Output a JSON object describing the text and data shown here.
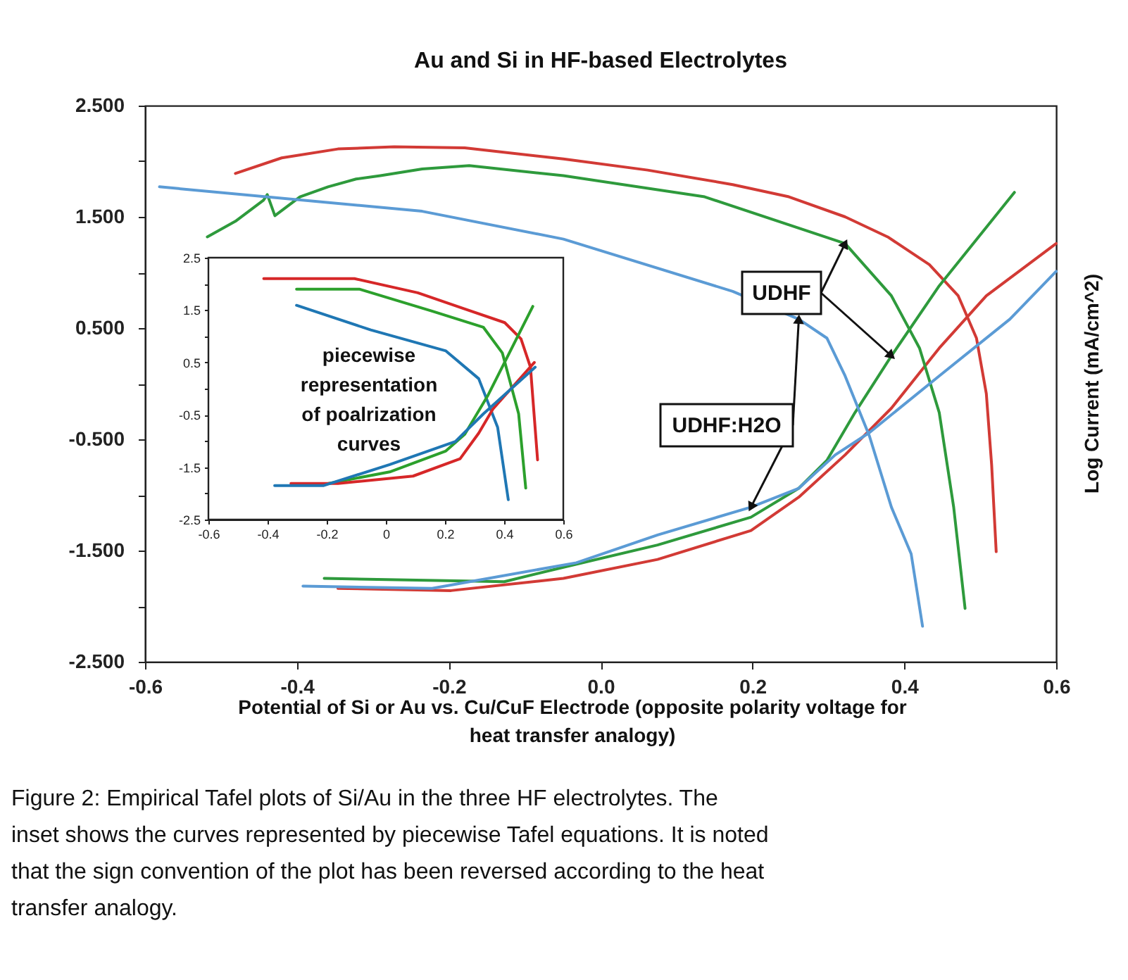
{
  "chart_data": [
    {
      "type": "line",
      "title": "Au and Si in HF-based Electrolytes",
      "xlabel": "Potential of Si or Au vs. Cu/CuF Electrode (opposite polarity voltage for heat transfer analogy)",
      "ylabel": "Log Current (mA/cm^2)",
      "xlim": [
        -0.6,
        0.6
      ],
      "ylim": [
        -2.5,
        2.5
      ],
      "xticks": [
        -0.6,
        -0.4,
        -0.2,
        {
          "value": 0,
          "label": "0.0"
        },
        0.2,
        0.4,
        0.6
      ],
      "yticks": [
        {
          "value": 2.5,
          "label": "2.500"
        },
        {
          "value": 2.0,
          "label": null
        },
        {
          "value": 1.5,
          "label": "1.500"
        },
        {
          "value": 1.0,
          "label": null
        },
        {
          "value": 0.5,
          "label": "0.500"
        },
        {
          "value": 0,
          "label": null
        },
        {
          "value": -0.5,
          "label": "-0.500"
        },
        {
          "value": -1.0,
          "label": null
        },
        {
          "value": -1.5,
          "label": "-1.500"
        },
        {
          "value": -2.0,
          "label": null
        },
        {
          "value": -2.5,
          "label": "-2.500"
        }
      ],
      "grid": false,
      "legend": false,
      "marker": "none",
      "series": [
        {
          "color": "#d23a35",
          "x": [
            -0.481,
            -0.42,
            -0.346,
            -0.272,
            -0.179,
            -0.049,
            0.062,
            0.174,
            0.248,
            0.322,
            0.378,
            0.433,
            0.471,
            0.495,
            0.508,
            0.515,
            0.521,
            null,
            -0.346,
            -0.197,
            -0.049,
            0.075,
            0.198,
            0.261,
            0.322,
            0.383,
            0.446,
            0.508,
            0.6
          ],
          "values": [
            1.89,
            2.03,
            2.11,
            2.13,
            2.12,
            2.02,
            1.92,
            1.79,
            1.68,
            1.5,
            1.32,
            1.07,
            0.79,
            0.41,
            -0.09,
            -0.73,
            -1.51,
            null,
            -1.84,
            -1.86,
            -1.75,
            -1.58,
            -1.32,
            -1.02,
            -0.64,
            -0.22,
            0.32,
            0.79,
            1.26
          ]
        },
        {
          "name": "UDHF",
          "color": "#2e9a3c",
          "x": [
            -0.518,
            -0.481,
            -0.444,
            -0.439,
            -0.429,
            -0.396,
            -0.359,
            -0.322,
            -0.29,
            -0.235,
            -0.173,
            -0.049,
            0.137,
            0.322,
            0.383,
            0.42,
            0.446,
            0.465,
            0.48,
            null,
            -0.364,
            -0.127,
            -0.049,
            0.075,
            0.198,
            0.261,
            0.298,
            0.335,
            0.383,
            0.446,
            0.545
          ],
          "values": [
            1.32,
            1.46,
            1.65,
            1.7,
            1.51,
            1.68,
            1.77,
            1.84,
            1.87,
            1.93,
            1.96,
            1.87,
            1.68,
            1.26,
            0.79,
            0.32,
            -0.26,
            -1.11,
            -2.02,
            null,
            -1.75,
            -1.78,
            -1.65,
            -1.45,
            -1.2,
            -0.94,
            -0.69,
            -0.26,
            0.25,
            0.88,
            1.72
          ]
        },
        {
          "name": "UDHF:H2O",
          "color": "#5b9bd5",
          "x": [
            -0.581,
            -0.235,
            -0.049,
            0.174,
            0.261,
            0.298,
            0.322,
            0.354,
            0.383,
            0.409,
            0.424,
            null,
            -0.392,
            -0.222,
            -0.032,
            0.075,
            0.198,
            0.261,
            0.309,
            0.354,
            0.446,
            0.539,
            0.6
          ],
          "values": [
            1.77,
            1.55,
            1.3,
            0.83,
            0.58,
            0.41,
            0.07,
            -0.47,
            -1.11,
            -1.53,
            -2.18,
            null,
            -1.82,
            -1.84,
            -1.61,
            -1.36,
            -1.11,
            -0.94,
            -0.64,
            -0.44,
            0.07,
            0.58,
            1.01
          ]
        }
      ],
      "annotations": [
        "Figure 2: Empirical Tafel plots of Si/Au in the three HF electrolytes. The inset shows the curves represented by piecewise Tafel equations. It is noted that the sign convention of the plot has been reversed according to the heat transfer analogy."
      ]
    },
    {
      "type": "line",
      "xlim": [
        -0.6,
        0.6
      ],
      "ylim": [
        -2.5,
        2.5
      ],
      "xticks": [
        -0.6,
        -0.4,
        -0.2,
        0,
        0.2,
        0.4,
        0.6
      ],
      "yticks": [
        2.5,
        {
          "value": 2.0,
          "label": null
        },
        1.5,
        {
          "value": 1.0,
          "label": null
        },
        0.5,
        {
          "value": 0,
          "label": null
        },
        -0.5,
        {
          "value": -1.0,
          "label": null
        },
        -1.5,
        {
          "value": -2.0,
          "label": null
        },
        -2.5
      ],
      "grid": false,
      "legend": false,
      "marker": "none",
      "series": [
        {
          "color": "#d62728",
          "x": [
            -0.413,
            -0.106,
            0.108,
            0.267,
            0.402,
            0.457,
            0.489,
            0.513
          ],
          "values": [
            2.1,
            2.1,
            1.83,
            1.52,
            1.26,
            0.95,
            0.41,
            -1.36
          ]
        },
        {
          "color": "#2ca02c",
          "x": [
            -0.302,
            -0.09,
            0.156,
            0.33,
            0.394,
            0.449,
            0.473
          ],
          "values": [
            1.9,
            1.9,
            1.48,
            1.17,
            0.68,
            -0.48,
            -1.9
          ]
        },
        {
          "color": "#1f77b4",
          "x": [
            -0.302,
            -0.051,
            0.203,
            0.314,
            0.378,
            0.414
          ],
          "values": [
            1.59,
            1.12,
            0.72,
            0.19,
            -0.74,
            -2.12
          ]
        },
        {
          "color": "#2ca02c",
          "x": [
            -0.194,
            0.013,
            0.203,
            0.267,
            0.346,
            0.497
          ],
          "values": [
            -1.81,
            -1.59,
            -1.19,
            -0.87,
            -0.12,
            1.57
          ]
        },
        {
          "color": "#d62728",
          "x": [
            -0.321,
            -0.162,
            0.092,
            0.251,
            0.314,
            0.362,
            0.425,
            0.502
          ],
          "values": [
            -1.81,
            -1.81,
            -1.67,
            -1.34,
            -0.85,
            -0.39,
            0.01,
            0.5
          ]
        },
        {
          "color": "#1f77b4",
          "x": [
            -0.376,
            -0.21,
            0.013,
            0.235,
            0.33,
            0.505
          ],
          "values": [
            -1.85,
            -1.85,
            -1.45,
            -1.01,
            -0.48,
            0.41
          ]
        }
      ],
      "annotations": [
        "piecewise representation of poalrization curves"
      ]
    }
  ]
}
